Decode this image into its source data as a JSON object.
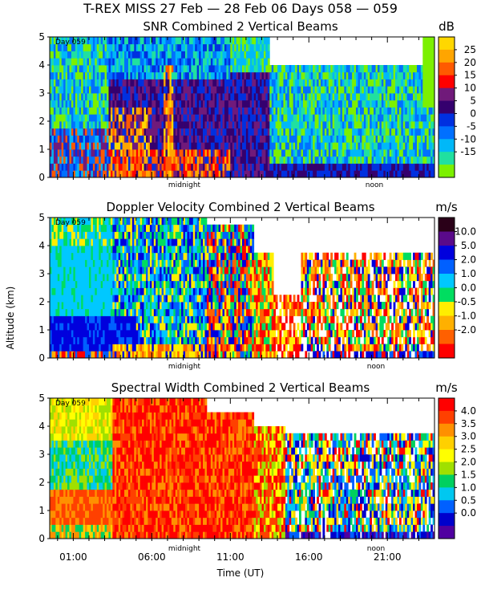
{
  "figure": {
    "title": "T-REX MISS   27 Feb — 28 Feb 06 Days 058 — 059",
    "ylabel": "Altitude (km)",
    "xlabel": "Time (UT)",
    "x_ticks": [
      "01:00",
      "06:00",
      "11:00",
      "16:00",
      "21:00"
    ],
    "markers": {
      "midnight": "midnight",
      "noon": "noon"
    }
  },
  "chart_data": [
    {
      "type": "heatmap",
      "title": "SNR Combined 2 Vertical Beams",
      "day_label": "Day 059",
      "y_ticks": [
        "0",
        "1",
        "2",
        "3",
        "4",
        "5"
      ],
      "ylim": [
        0,
        5
      ],
      "xlim_hours_ut": [
        -0.5,
        24.0
      ],
      "colorbar": {
        "unit": "dB",
        "labels": [
          "25",
          "20",
          "15",
          "10",
          "5",
          "0",
          "-5",
          "-10",
          "-15"
        ],
        "colors": [
          "#ffd700",
          "#ffa500",
          "#ff5a00",
          "#ff0000",
          "#701a7a",
          "#35006e",
          "#0030e0",
          "#0070ff",
          "#00b8f8",
          "#20e0a0",
          "#7cf000"
        ]
      }
    },
    {
      "type": "heatmap",
      "title": "Doppler Velocity Combined 2 Vertical Beams",
      "day_label": "Day 059",
      "y_ticks": [
        "0",
        "1",
        "2",
        "3",
        "4",
        "5"
      ],
      "ylim": [
        0,
        5
      ],
      "xlim_hours_ut": [
        -0.5,
        24.0
      ],
      "colorbar": {
        "unit": "m/s",
        "labels": [
          "10.0",
          "5.0",
          "2.0",
          "1.0",
          "0.0",
          "-0.5",
          "-1.0",
          "-2.0"
        ],
        "colors": [
          "#2a0018",
          "#5a0a8a",
          "#0000dd",
          "#0060ff",
          "#00c8ff",
          "#00dd60",
          "#ffee00",
          "#ffb000",
          "#ff6000",
          "#ff0000"
        ]
      }
    },
    {
      "type": "heatmap",
      "title": "Spectral Width Combined 2 Vertical Beams",
      "day_label": "Day 059",
      "y_ticks": [
        "0",
        "1",
        "2",
        "3",
        "4",
        "5"
      ],
      "ylim": [
        0,
        5
      ],
      "xlim_hours_ut": [
        -0.5,
        24.0
      ],
      "colorbar": {
        "unit": "m/s",
        "labels": [
          "4.0",
          "3.5",
          "3.0",
          "2.5",
          "2.0",
          "1.5",
          "1.0",
          "0.5",
          "0.0"
        ],
        "colors": [
          "#ff0000",
          "#ff4000",
          "#ff9000",
          "#ffd000",
          "#ffff00",
          "#a0e000",
          "#00d060",
          "#00c8f0",
          "#0060ff",
          "#0000cc",
          "#5000a0"
        ]
      }
    }
  ]
}
